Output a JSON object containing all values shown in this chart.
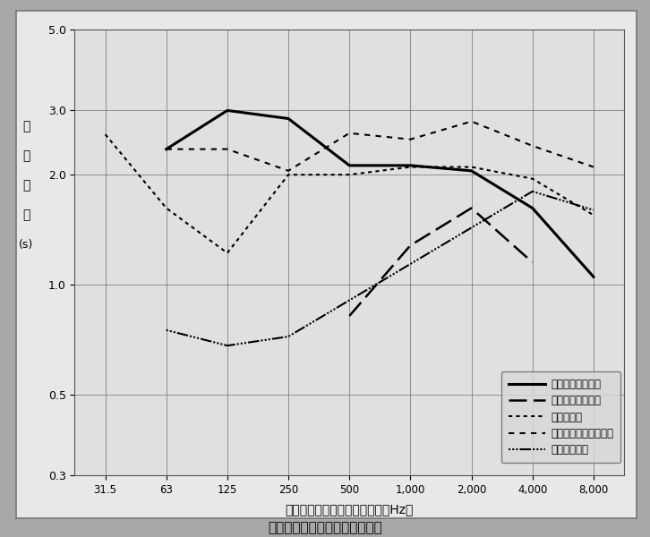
{
  "x_labels": [
    "31.5",
    "63",
    "125",
    "250",
    "500",
    "1,000",
    "2,000",
    "4,000",
    "8,000"
  ],
  "x_values": [
    31.5,
    63,
    125,
    250,
    500,
    1000,
    2000,
    4000,
    8000
  ],
  "series": [
    {
      "name": "霊南坂教会（新）",
      "key": "solid",
      "linewidth": 2.2,
      "y": [
        null,
        2.35,
        3.0,
        2.85,
        2.12,
        2.12,
        2.05,
        1.62,
        1.05
      ]
    },
    {
      "name": "霊南坂教会（旧）",
      "key": "longdash",
      "linewidth": 1.8,
      "y": [
        null,
        null,
        null,
        null,
        0.82,
        1.28,
        1.62,
        1.15,
        null
      ]
    },
    {
      "name": "浦上天主堂",
      "key": "densedot",
      "linewidth": 1.5,
      "y": [
        2.58,
        1.62,
        1.22,
        2.0,
        2.0,
        2.1,
        2.1,
        1.95,
        1.55
      ]
    },
    {
      "name": "国際基督教大学礼拝堂",
      "key": "sparsedot",
      "linewidth": 1.5,
      "y": [
        null,
        2.35,
        2.35,
        2.05,
        2.6,
        2.5,
        2.8,
        2.4,
        2.1
      ]
    },
    {
      "name": "富士見町教会",
      "key": "densedash",
      "linewidth": 1.5,
      "y": [
        null,
        0.75,
        0.68,
        0.72,
        null,
        null,
        null,
        1.8,
        1.6
      ]
    }
  ],
  "ylabel_chars": [
    "残",
    "響",
    "時",
    "間",
    "(s)"
  ],
  "xlabel": "オクターブバンド中心周波数（Hz）",
  "caption": "教会の残響時間周波数特性の例",
  "yticks": [
    0.3,
    0.5,
    1.0,
    2.0,
    3.0,
    5.0
  ],
  "ytick_labels": [
    "0.3",
    "0.5",
    "1.0",
    "2.0",
    "3.0",
    "5.0"
  ],
  "background_color": "#a8a8a8",
  "plot_bg_color": "#e0e0e0",
  "outer_bg_color": "#e8e8e8"
}
